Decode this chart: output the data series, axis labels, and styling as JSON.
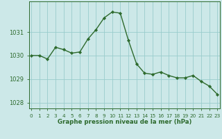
{
  "hours": [
    0,
    1,
    2,
    3,
    4,
    5,
    6,
    7,
    8,
    9,
    10,
    11,
    12,
    13,
    14,
    15,
    16,
    17,
    18,
    19,
    20,
    21,
    22,
    23
  ],
  "values": [
    1030.0,
    1030.0,
    1029.85,
    1030.35,
    1030.25,
    1030.1,
    1030.15,
    1030.7,
    1031.1,
    1031.6,
    1031.85,
    1031.8,
    1030.65,
    1029.65,
    1029.25,
    1029.2,
    1029.3,
    1029.15,
    1029.05,
    1029.05,
    1029.15,
    1028.9,
    1028.7,
    1028.35
  ],
  "line_color": "#2d6a2d",
  "marker_color": "#2d6a2d",
  "bg_color": "#cce8e8",
  "grid_color": "#99cccc",
  "axis_color": "#2d6a2d",
  "xlabel": "Graphe pression niveau de la mer (hPa)",
  "ylim": [
    1027.75,
    1032.3
  ],
  "yticks": [
    1028,
    1029,
    1030,
    1031
  ],
  "xticks": [
    0,
    1,
    2,
    3,
    4,
    5,
    6,
    7,
    8,
    9,
    10,
    11,
    12,
    13,
    14,
    15,
    16,
    17,
    18,
    19,
    20,
    21,
    22,
    23
  ],
  "xtick_labels": [
    "0",
    "1",
    "2",
    "3",
    "4",
    "5",
    "6",
    "7",
    "8",
    "9",
    "10",
    "11",
    "12",
    "13",
    "14",
    "15",
    "16",
    "17",
    "18",
    "19",
    "20",
    "21",
    "22",
    "23"
  ]
}
